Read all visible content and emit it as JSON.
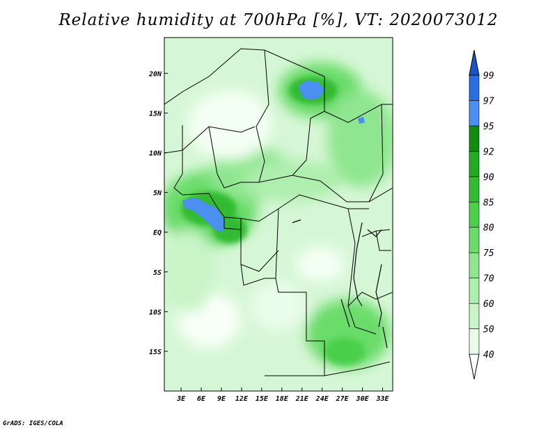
{
  "title": "Relative humidity at 700hPa [%], VT: 2020073012",
  "credit": "GrADS: IGES/COLA",
  "map": {
    "lat_ticks": [
      "20N",
      "15N",
      "10N",
      "5N",
      "EQ",
      "5S",
      "10S",
      "15S"
    ],
    "lat_values": [
      20,
      15,
      10,
      5,
      0,
      -5,
      -10,
      -15
    ],
    "lon_ticks": [
      "3E",
      "6E",
      "9E",
      "12E",
      "15E",
      "18E",
      "21E",
      "24E",
      "27E",
      "30E",
      "33E"
    ],
    "lon_values": [
      3,
      6,
      9,
      12,
      15,
      18,
      21,
      24,
      27,
      30,
      33
    ],
    "lon_range": [
      0.5,
      34.5
    ],
    "lat_range": [
      -20,
      24.5
    ]
  },
  "colorbar": {
    "levels": [
      "40",
      "50",
      "60",
      "70",
      "75",
      "80",
      "85",
      "90",
      "92",
      "95",
      "97",
      "99"
    ],
    "colors": [
      "#ffffff",
      "#e8fce8",
      "#c9f5c9",
      "#aeeeae",
      "#90e690",
      "#6bdc6b",
      "#4cd04c",
      "#33bb33",
      "#22aa22",
      "#118c11",
      "#4b8ff0",
      "#2a6fe0",
      "#1a55c8"
    ]
  }
}
